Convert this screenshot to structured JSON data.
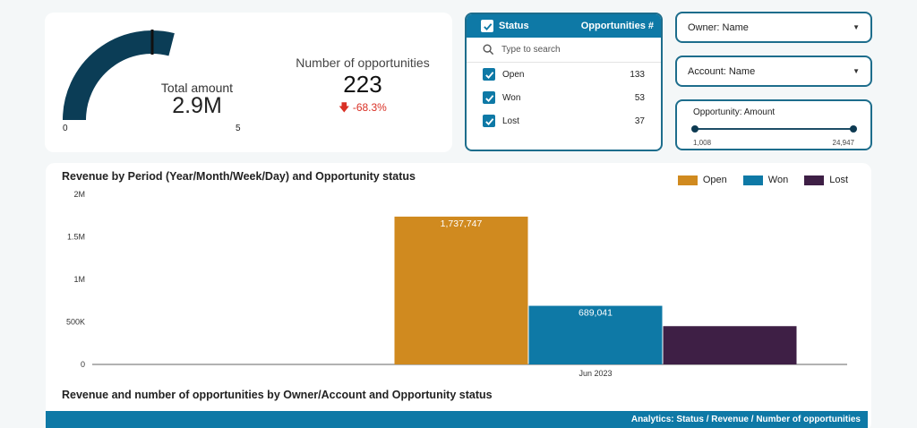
{
  "kpi": {
    "gauge": {
      "caption": "Total amount",
      "value": "2.9M",
      "min_label": "0",
      "max_label": "5",
      "min": 0,
      "max": 5,
      "current": 2.9,
      "target": 2.5,
      "fill_color": "#0b3d56"
    },
    "opportunities": {
      "title": "Number of opportunities",
      "count": "223",
      "delta": "-68.3%",
      "delta_color": "#d93025"
    }
  },
  "status_filter": {
    "header": "Status",
    "count_header": "Opportunities #",
    "search_placeholder": "Type to search",
    "rows": [
      {
        "label": "Open",
        "count": "133"
      },
      {
        "label": "Won",
        "count": "53"
      },
      {
        "label": "Lost",
        "count": "37"
      }
    ]
  },
  "filters": {
    "owner": "Owner: Name",
    "account": "Account: Name",
    "amount": {
      "label": "Opportunity: Amount",
      "min": "1,008",
      "max": "24,947"
    }
  },
  "chart_data": {
    "type": "bar",
    "title": "Revenue by Period (Year/Month/Week/Day) and Opportunity status",
    "categories": [
      "Jun 2023"
    ],
    "series": [
      {
        "name": "Open",
        "values": [
          1737747
        ],
        "label": "1,737,747",
        "color": "#d08a1f"
      },
      {
        "name": "Won",
        "values": [
          689041
        ],
        "label": "689,041",
        "color": "#0e79a6"
      },
      {
        "name": "Lost",
        "values": [
          450000
        ],
        "label": "",
        "color": "#3e1f45"
      }
    ],
    "yticks": [
      {
        "value": 0,
        "label": "0"
      },
      {
        "value": 500000,
        "label": "500K"
      },
      {
        "value": 1000000,
        "label": "1M"
      },
      {
        "value": 1500000,
        "label": "1.5M"
      },
      {
        "value": 2000000,
        "label": "2M"
      }
    ],
    "ylim": [
      0,
      2000000
    ],
    "xlabel": "",
    "ylabel": "",
    "legend_position": "top-right"
  },
  "table": {
    "title": "Revenue and number of opportunities by Owner/Account and Opportunity status",
    "header": "Analytics: Status / Revenue / Number of opportunities"
  }
}
